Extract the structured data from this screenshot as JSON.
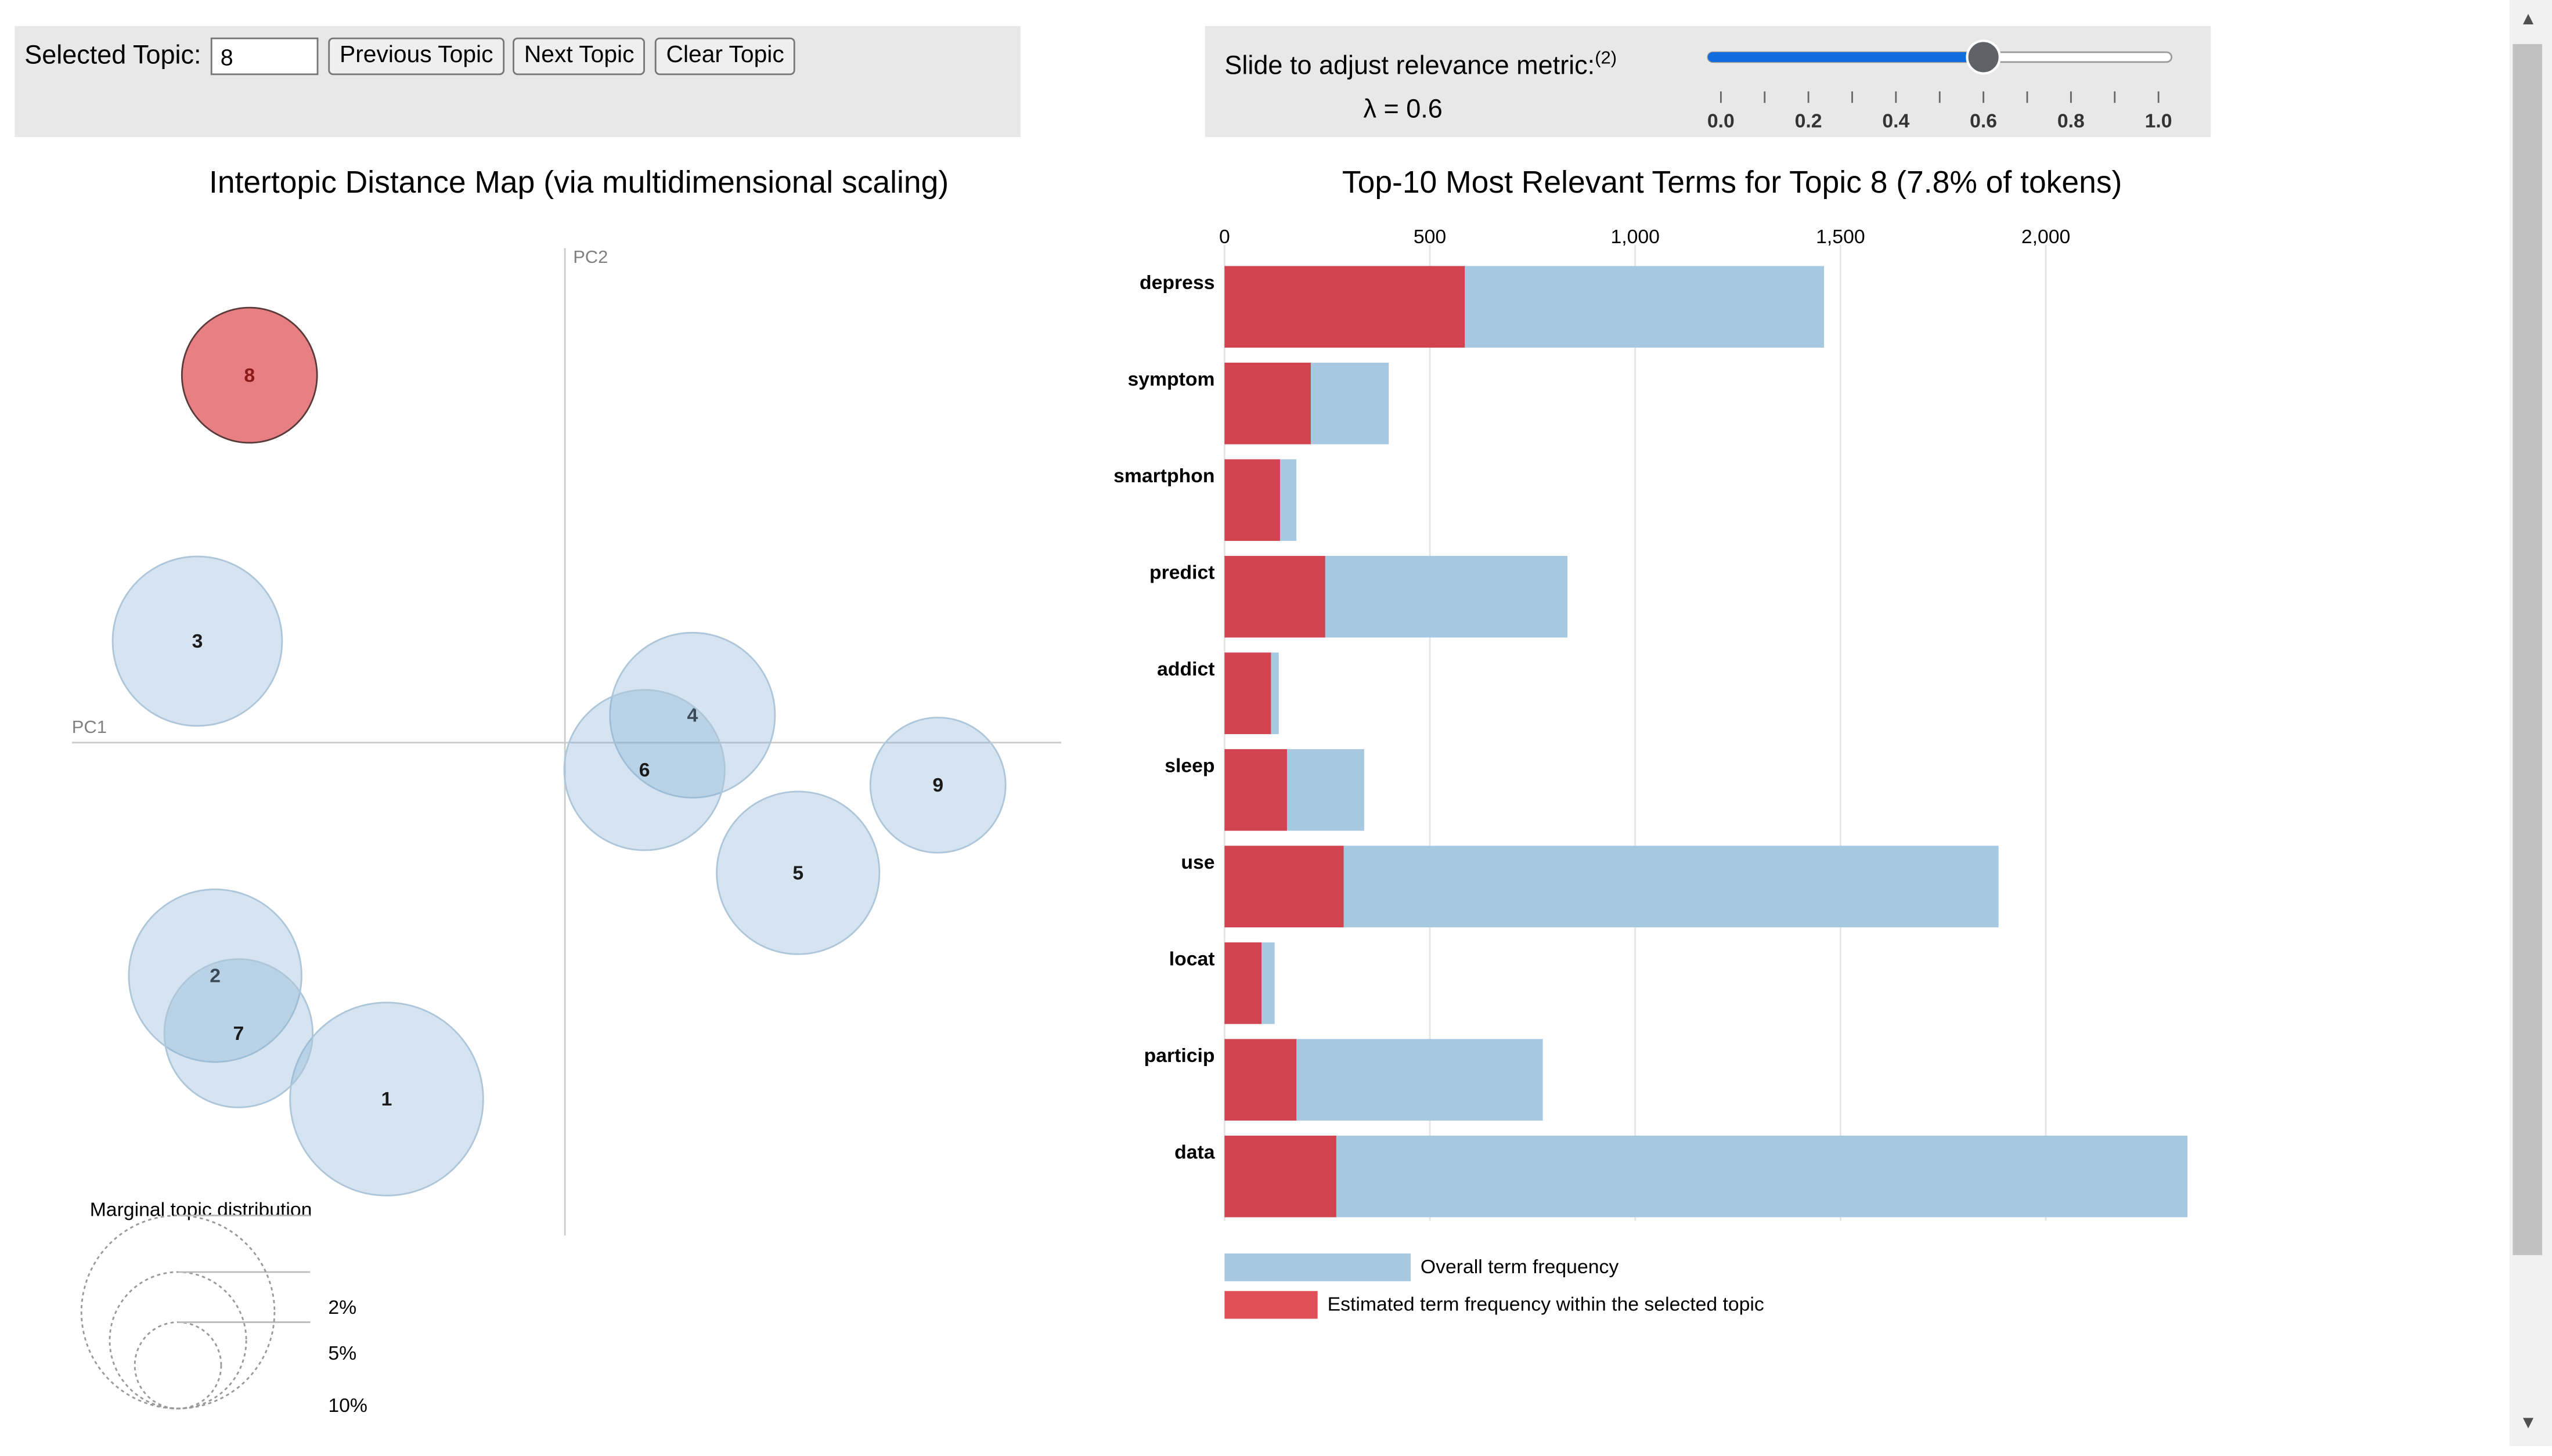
{
  "controls": {
    "selected_label": "Selected Topic:",
    "selected_value": "8",
    "prev_label": "Previous Topic",
    "next_label": "Next Topic",
    "clear_label": "Clear Topic",
    "slider_label": "Slide to adjust relevance metric:",
    "slider_footnote": "(2)",
    "lambda_text": "λ = 0.6",
    "lambda_value": 0.6,
    "slider_ticks": [
      "0.0",
      "0.2",
      "0.4",
      "0.6",
      "0.8",
      "1.0"
    ]
  },
  "map": {
    "title": "Intertopic Distance Map (via multidimensional scaling)",
    "pc1_label": "PC1",
    "pc2_label": "PC2",
    "marginal_title": "Marginal topic distribution",
    "marginal_sizes": [
      "2%",
      "5%",
      "10%"
    ],
    "selected_topic": "8",
    "topics": [
      {
        "id": "1",
        "x": -130,
        "y": -260,
        "size": 10.0
      },
      {
        "id": "2",
        "x": -255,
        "y": -170,
        "size": 8.0
      },
      {
        "id": "3",
        "x": -268,
        "y": 74,
        "size": 7.7
      },
      {
        "id": "4",
        "x": 93,
        "y": 20,
        "size": 7.3
      },
      {
        "id": "5",
        "x": 170,
        "y": -95,
        "size": 7.1
      },
      {
        "id": "6",
        "x": 58,
        "y": -20,
        "size": 6.9
      },
      {
        "id": "7",
        "x": -238,
        "y": -212,
        "size": 5.9
      },
      {
        "id": "8",
        "x": -230,
        "y": 268,
        "size": 4.9
      },
      {
        "id": "9",
        "x": 272,
        "y": -31,
        "size": 4.9
      }
    ]
  },
  "chart_data": {
    "type": "bar",
    "orientation": "horizontal",
    "title": "Top-10 Most Relevant Terms for Topic 8 (7.8% of tokens)",
    "categories": [
      "depress",
      "symptom",
      "smartphon",
      "predict",
      "addict",
      "sleep",
      "use",
      "locat",
      "particip",
      "data"
    ],
    "series": [
      {
        "name": "Overall term frequency",
        "color": "#a6c8e0",
        "values": [
          1460,
          400,
          175,
          835,
          132,
          340,
          1885,
          122,
          775,
          2345
        ]
      },
      {
        "name": "Estimated term frequency within the selected topic",
        "color": "#d0434f",
        "values": [
          585,
          210,
          135,
          245,
          113,
          152,
          290,
          90,
          175,
          272
        ]
      }
    ],
    "xticks": [
      0,
      500,
      1000,
      1500,
      2000
    ],
    "xtick_labels": [
      "0",
      "500",
      "1,000",
      "1,500",
      "2,000"
    ],
    "xlim": [
      0,
      2345
    ],
    "legend": [
      "Overall term frequency",
      "Estimated term frequency within the selected topic"
    ],
    "legend_position": "bottom-left"
  }
}
